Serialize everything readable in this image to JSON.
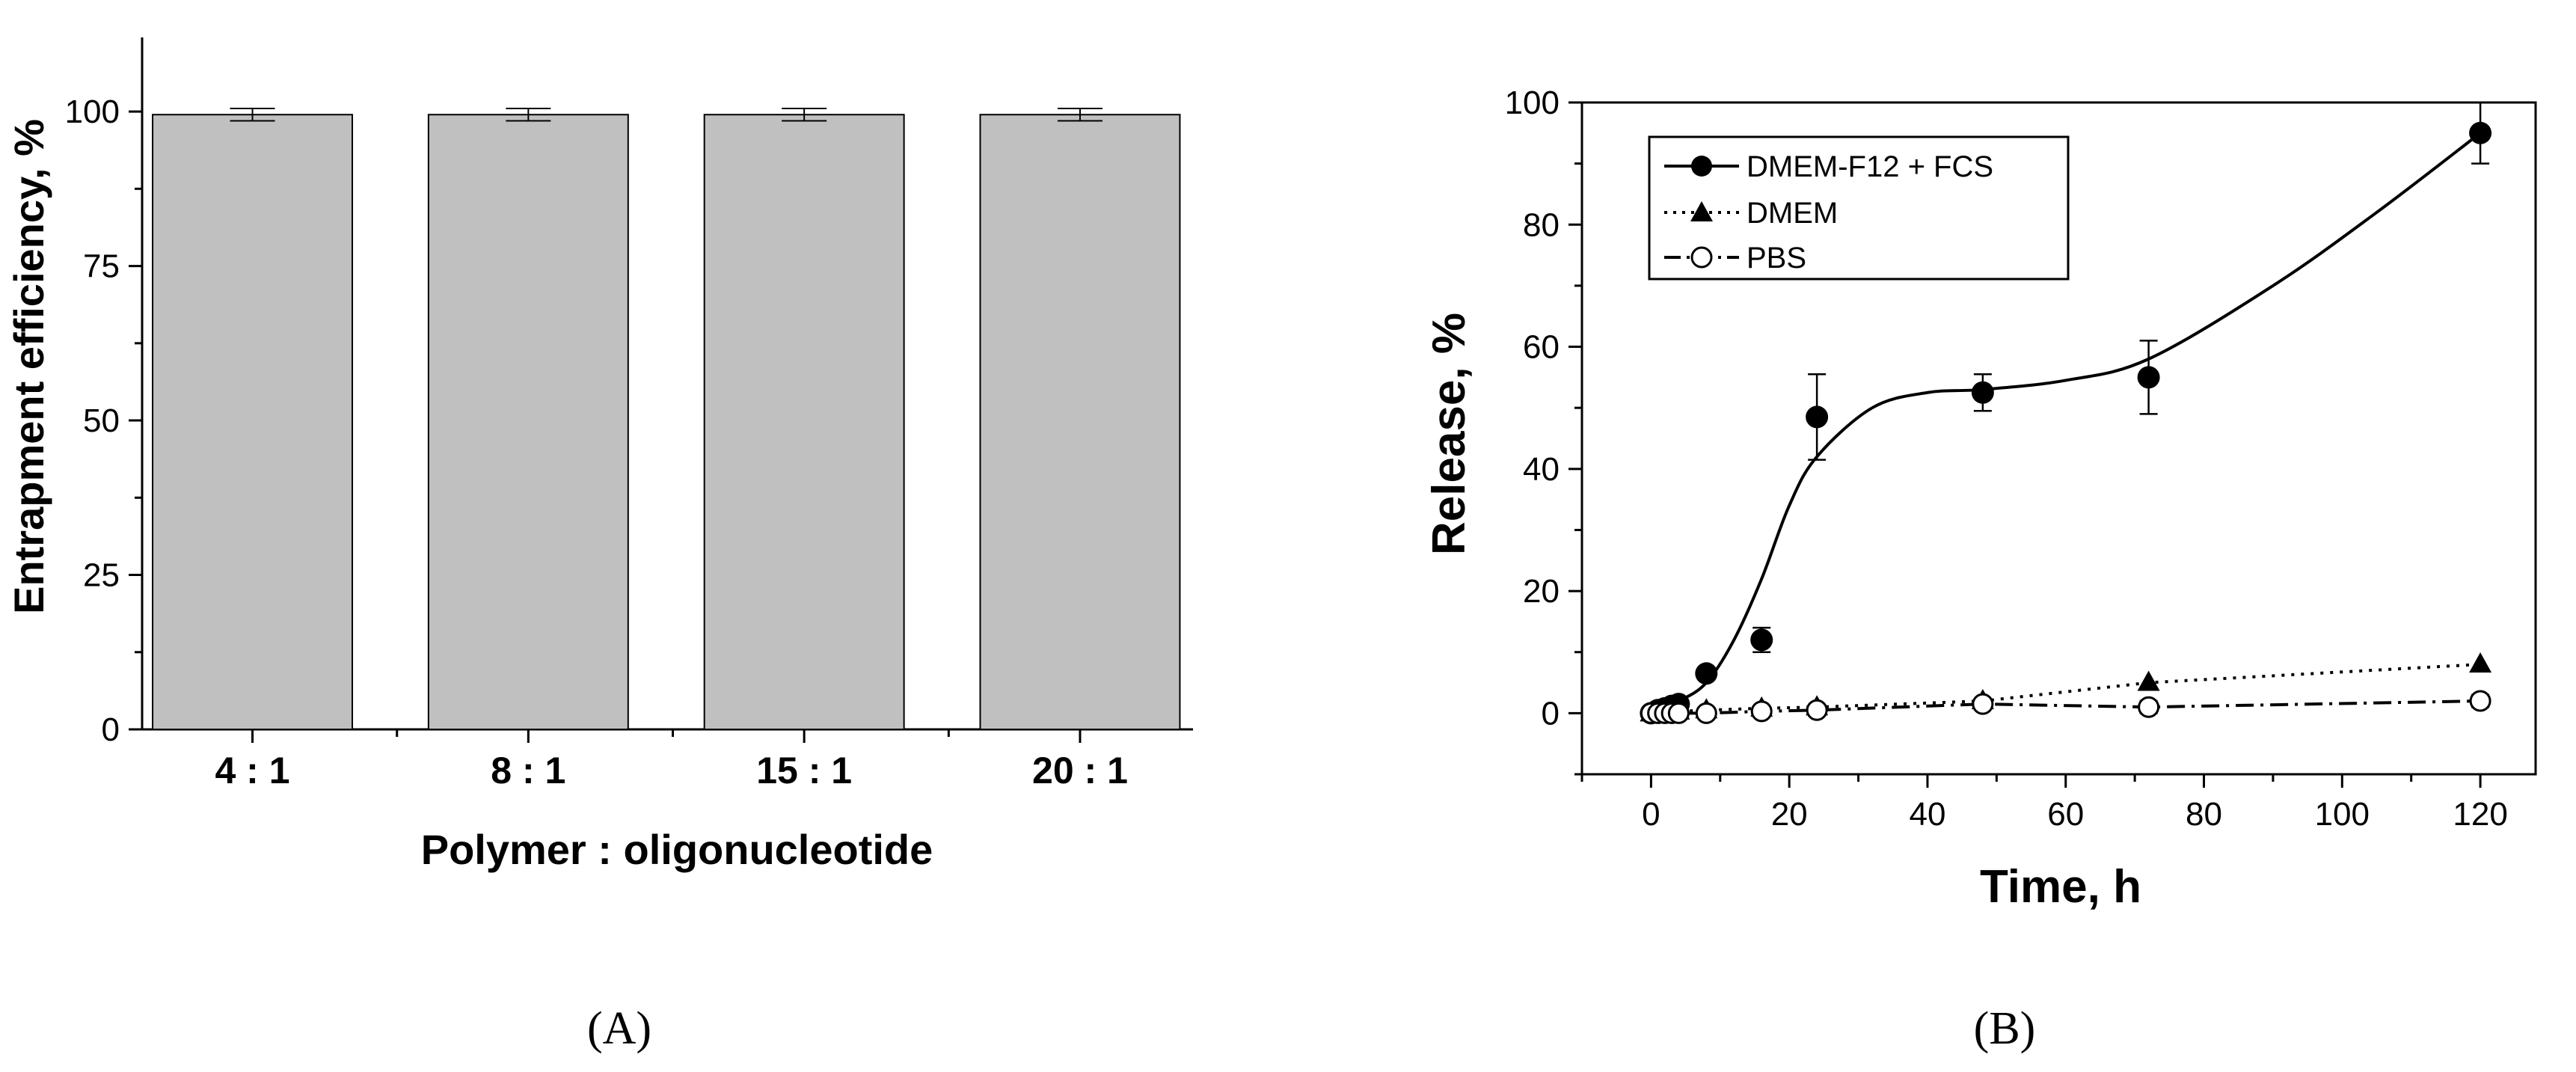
{
  "chart_data": [
    {
      "type": "bar",
      "panel_label": "(A)",
      "categories": [
        "4 : 1",
        "8 : 1",
        "15 : 1",
        "20 : 1"
      ],
      "values": [
        99.5,
        99.5,
        99.5,
        99.5
      ],
      "errors": [
        1,
        1,
        1,
        1
      ],
      "xlabel": "Polymer : oligonucleotide",
      "ylabel": "Entrapment efficiency, %",
      "ylim": [
        0,
        112
      ],
      "yticks": [
        0,
        25,
        50,
        75,
        100
      ],
      "bar_color": "#c0c0c0",
      "title": ""
    },
    {
      "type": "line",
      "panel_label": "(B)",
      "xlabel": "Time, h",
      "ylabel": "Release, %",
      "xlim": [
        -10,
        128
      ],
      "ylim": [
        -10,
        100
      ],
      "xticks": [
        0,
        20,
        40,
        60,
        80,
        100,
        120
      ],
      "yticks": [
        0,
        20,
        40,
        60,
        80,
        100
      ],
      "legend_position": "top-left",
      "series": [
        {
          "name": "DMEM-F12 + FCS",
          "marker": "filled-circle",
          "line": "solid",
          "x": [
            0,
            1,
            2,
            3,
            4,
            8,
            16,
            24,
            48,
            72,
            120
          ],
          "y": [
            0,
            0.5,
            0.8,
            1.2,
            1.5,
            6.5,
            12,
            48.5,
            52.5,
            55,
            95
          ],
          "err": [
            0,
            0,
            0,
            0,
            0,
            0,
            2,
            7,
            3,
            6,
            5
          ]
        },
        {
          "name": "DMEM",
          "marker": "filled-triangle",
          "line": "dotted",
          "x": [
            0,
            1,
            2,
            3,
            4,
            8,
            16,
            24,
            48,
            72,
            120
          ],
          "y": [
            0,
            0,
            0,
            0.2,
            0.3,
            0.5,
            0.8,
            1,
            2,
            5,
            8
          ],
          "err": [
            0,
            0,
            0,
            0,
            0,
            0,
            0,
            0,
            0,
            0,
            0
          ]
        },
        {
          "name": "PBS",
          "marker": "open-circle",
          "line": "dash-dot",
          "x": [
            0,
            1,
            2,
            3,
            4,
            8,
            16,
            24,
            48,
            72,
            120
          ],
          "y": [
            0,
            0,
            0,
            0,
            0,
            0,
            0.3,
            0.5,
            1.5,
            1,
            2
          ],
          "err": [
            0,
            0,
            0,
            0,
            0,
            0,
            0,
            0,
            0,
            1,
            1
          ]
        }
      ]
    }
  ]
}
